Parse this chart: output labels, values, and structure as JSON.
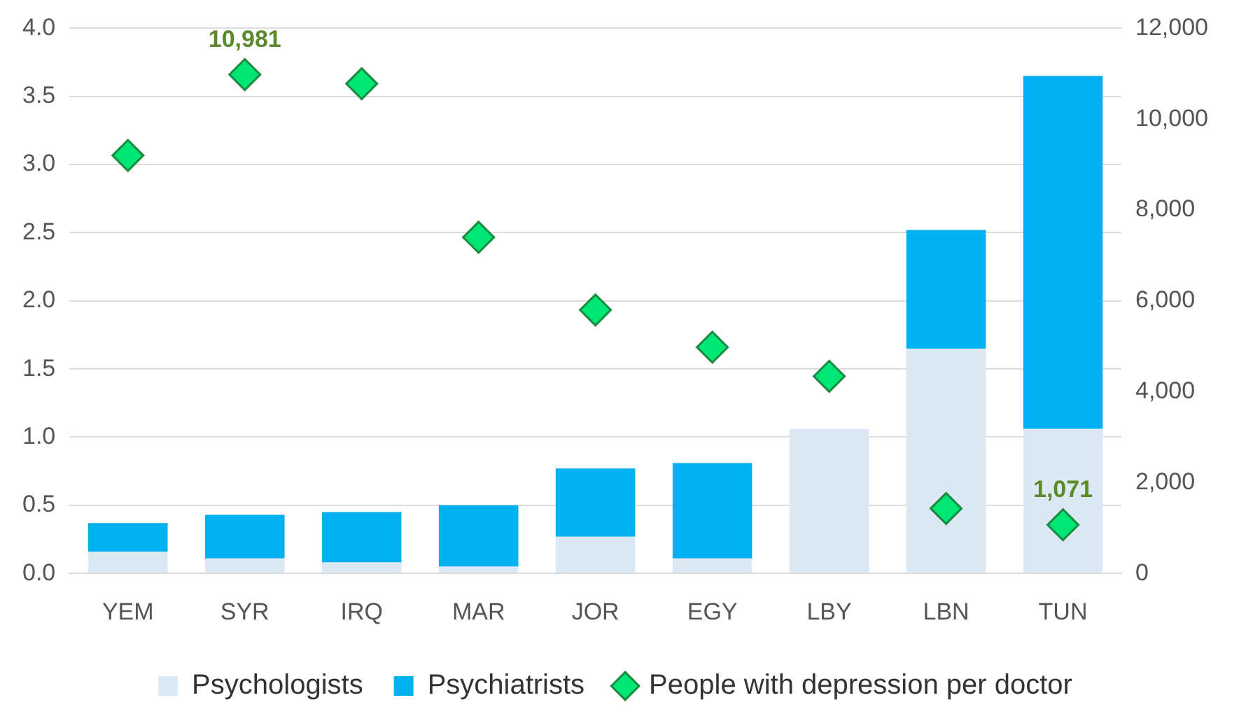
{
  "chart_data": {
    "type": "bar",
    "stacked": true,
    "categories": [
      "YEM",
      "SYR",
      "IRQ",
      "MAR",
      "JOR",
      "EGY",
      "LBY",
      "LBN",
      "TUN"
    ],
    "series": [
      {
        "name": "Psychologists",
        "color": "#dce9f5",
        "values": [
          0.16,
          0.11,
          0.08,
          0.05,
          0.27,
          0.11,
          1.06,
          1.65,
          1.06
        ]
      },
      {
        "name": "Psychiatrists",
        "color": "#00b0f0",
        "values": [
          0.21,
          0.32,
          0.37,
          0.45,
          0.5,
          0.7,
          0,
          0.87,
          2.59
        ]
      },
      {
        "name": "People with depression per doctor",
        "type": "scatter",
        "axis": "y2",
        "marker": "diamond",
        "color": "#00e676",
        "values": [
          9200,
          10981,
          10780,
          7400,
          5800,
          4980,
          4340,
          1430,
          1071
        ],
        "value_labels": [
          null,
          "10,981",
          null,
          null,
          null,
          null,
          null,
          null,
          "1,071"
        ]
      }
    ],
    "ylim": [
      0,
      4
    ],
    "yticks": [
      {
        "value": 0,
        "label": "0.0"
      },
      {
        "value": 0.5,
        "label": "0.5"
      },
      {
        "value": 1,
        "label": "1.0"
      },
      {
        "value": 1.5,
        "label": "1.5"
      },
      {
        "value": 2,
        "label": "2.0"
      },
      {
        "value": 2.5,
        "label": "2.5"
      },
      {
        "value": 3,
        "label": "3.0"
      },
      {
        "value": 3.5,
        "label": "3.5"
      },
      {
        "value": 4,
        "label": "4.0"
      }
    ],
    "y2lim": [
      0,
      12000
    ],
    "y2ticks": [
      {
        "value": 0,
        "label": "0"
      },
      {
        "value": 2000,
        "label": "2,000"
      },
      {
        "value": 4000,
        "label": "4,000"
      },
      {
        "value": 6000,
        "label": "6,000"
      },
      {
        "value": 8000,
        "label": "8,000"
      },
      {
        "value": 10000,
        "label": "10,000"
      },
      {
        "value": 12000,
        "label": "12,000"
      }
    ],
    "grid": "y",
    "legend": "bottom"
  }
}
